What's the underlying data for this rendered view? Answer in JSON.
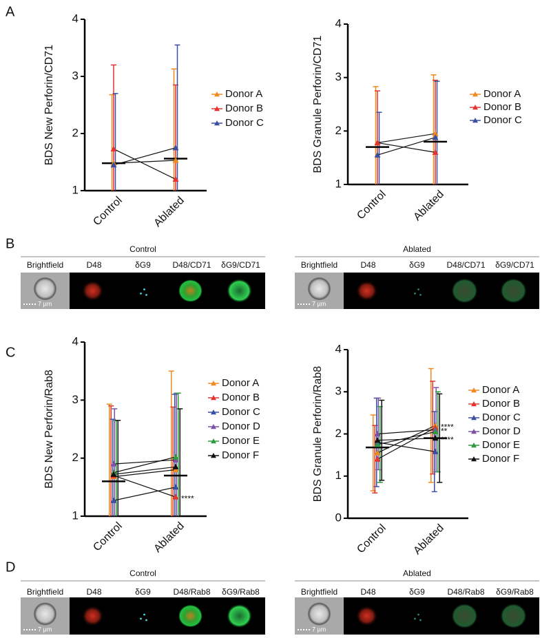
{
  "figure": {
    "letters": [
      "A",
      "B",
      "C",
      "D"
    ],
    "strips": [
      {
        "groups": [
          {
            "title": "Control",
            "channels": [
              "Brightfield",
              "D48",
              "δG9",
              "D48/CD71",
              "δG9/CD71"
            ],
            "scale": "7 µm"
          },
          {
            "title": "Ablated",
            "channels": [
              "Brightfield",
              "D48",
              "δG9",
              "D48/CD71",
              "δG9/CD71"
            ],
            "scale": "7 µm"
          }
        ]
      },
      {
        "groups": [
          {
            "title": "Control",
            "channels": [
              "Brightfield",
              "D48",
              "δG9",
              "D48/Rab8",
              "δG9/Rab8"
            ],
            "scale": "7 µm"
          },
          {
            "title": "Ablated",
            "channels": [
              "Brightfield",
              "D48",
              "δG9",
              "D48/Rab8",
              "δG9/Rab8"
            ],
            "scale": "7 µm"
          }
        ]
      }
    ]
  },
  "chart_data": [
    {
      "type": "paired",
      "ylabel": "BDS New Perforin/CD71",
      "categories": [
        "Control",
        "Ablated"
      ],
      "ylim": [
        1,
        4
      ],
      "yticks": [
        1,
        2,
        3,
        4
      ],
      "means": [
        1.48,
        1.56
      ],
      "series": [
        {
          "name": "Donor A",
          "color": "#f08a1c",
          "values": [
            1.48,
            1.53
          ],
          "errors": [
            1.2,
            1.6
          ]
        },
        {
          "name": "Donor B",
          "color": "#e3342f",
          "values": [
            1.73,
            1.2
          ],
          "errors": [
            1.47,
            1.65
          ]
        },
        {
          "name": "Donor C",
          "color": "#3a4fa0",
          "values": [
            1.45,
            1.75
          ],
          "errors": [
            1.25,
            1.8
          ]
        }
      ]
    },
    {
      "type": "paired",
      "ylabel": "BDS Granule Perforin/CD71",
      "categories": [
        "Control",
        "Ablated"
      ],
      "ylim": [
        1,
        4
      ],
      "yticks": [
        1,
        2,
        3,
        4
      ],
      "means": [
        1.7,
        1.8
      ],
      "series": [
        {
          "name": "Donor A",
          "color": "#f08a1c",
          "values": [
            1.78,
            1.95
          ],
          "errors": [
            1.05,
            1.1
          ]
        },
        {
          "name": "Donor B",
          "color": "#e3342f",
          "values": [
            1.78,
            1.6
          ],
          "errors": [
            0.97,
            1.35
          ]
        },
        {
          "name": "Donor C",
          "color": "#3a4fa0",
          "values": [
            1.55,
            1.88
          ],
          "errors": [
            0.8,
            1.05
          ]
        }
      ]
    },
    {
      "type": "paired",
      "ylabel": "BDS New Perforin/Rab8",
      "categories": [
        "Control",
        "Ablated"
      ],
      "ylim": [
        1,
        4
      ],
      "yticks": [
        1,
        2,
        3,
        4
      ],
      "means": [
        1.6,
        1.7
      ],
      "series": [
        {
          "name": "Donor A",
          "color": "#f08a1c",
          "values": [
            1.68,
            1.8
          ],
          "errors": [
            1.25,
            1.7
          ],
          "annotations": [
            null,
            null
          ]
        },
        {
          "name": "Donor B",
          "color": "#e3342f",
          "values": [
            1.7,
            1.33
          ],
          "errors": [
            1.2,
            1.55
          ],
          "annotations": [
            null,
            "****"
          ]
        },
        {
          "name": "Donor C",
          "color": "#3a4fa0",
          "values": [
            1.27,
            1.5
          ],
          "errors": [
            1.4,
            1.6
          ],
          "annotations": [
            null,
            null
          ]
        },
        {
          "name": "Donor D",
          "color": "#7a52a8",
          "values": [
            1.9,
            1.97
          ],
          "errors": [
            0.95,
            1.15
          ],
          "annotations": [
            null,
            null
          ]
        },
        {
          "name": "Donor E",
          "color": "#2f9a3e",
          "values": [
            1.75,
            2.02
          ],
          "errors": [
            0.9,
            1.1
          ],
          "annotations": [
            null,
            null
          ]
        },
        {
          "name": "Donor F",
          "color": "#111111",
          "values": [
            1.72,
            1.85
          ],
          "errors": [
            0.93,
            1.0
          ],
          "annotations": [
            null,
            null
          ]
        }
      ]
    },
    {
      "type": "paired",
      "ylabel": "BDS Granule Perforin/Rab8",
      "categories": [
        "Control",
        "Ablated"
      ],
      "ylim": [
        0,
        4
      ],
      "yticks": [
        0,
        1,
        2,
        3,
        4
      ],
      "means": [
        1.68,
        1.9
      ],
      "series": [
        {
          "name": "Donor A",
          "color": "#f08a1c",
          "values": [
            1.55,
            2.2
          ],
          "errors": [
            0.9,
            1.35
          ],
          "annotations": [
            null,
            "****"
          ]
        },
        {
          "name": "Donor B",
          "color": "#e3342f",
          "values": [
            1.4,
            2.15
          ],
          "errors": [
            0.8,
            1.1
          ],
          "annotations": [
            null,
            null
          ]
        },
        {
          "name": "Donor C",
          "color": "#3a4fa0",
          "values": [
            1.8,
            1.58
          ],
          "errors": [
            1.05,
            0.95
          ],
          "annotations": [
            null,
            null
          ]
        },
        {
          "name": "Donor D",
          "color": "#7a52a8",
          "values": [
            2.0,
            2.1
          ],
          "errors": [
            0.85,
            1.0
          ],
          "annotations": [
            null,
            "**"
          ]
        },
        {
          "name": "Donor E",
          "color": "#2f9a3e",
          "values": [
            1.75,
            2.05
          ],
          "errors": [
            0.9,
            0.95
          ],
          "annotations": [
            null,
            null
          ]
        },
        {
          "name": "Donor F",
          "color": "#111111",
          "values": [
            1.85,
            1.9
          ],
          "errors": [
            0.95,
            1.05
          ],
          "annotations": [
            null,
            "****"
          ]
        }
      ]
    }
  ]
}
